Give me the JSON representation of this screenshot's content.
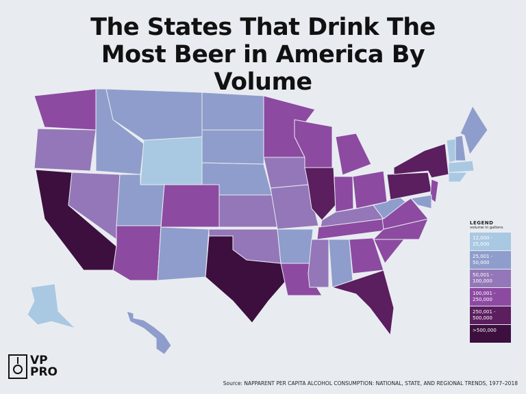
{
  "title": "The States That Drink The Most Beer in America By Volume",
  "legend": {
    "title": "LEGEND",
    "subtitle": "volume in gallons",
    "items": [
      {
        "label": "12,000 - 25,000",
        "color": "#a9c8e2"
      },
      {
        "label": "25,001 - 50,000",
        "color": "#8f9dcc"
      },
      {
        "label": "50,001 - 100,000",
        "color": "#9477b8"
      },
      {
        "label": "100,001 - 250,000",
        "color": "#8d4aa1"
      },
      {
        "label": "250,001 - 500,000",
        "color": "#5b1e5f"
      },
      {
        "label": ">500,000",
        "color": "#3d0f3e"
      }
    ]
  },
  "map": {
    "region_levels": [
      3,
      2,
      5,
      2,
      1,
      1,
      0,
      1,
      3,
      3,
      1,
      1,
      1,
      1,
      2,
      2,
      5,
      3,
      2,
      2,
      1,
      3,
      3,
      4,
      3,
      3,
      3,
      2,
      3,
      2,
      1,
      3,
      4,
      3,
      3,
      3,
      1,
      4,
      4,
      3,
      1,
      0,
      1,
      1,
      0,
      0,
      0,
      1
    ]
  },
  "logo": {
    "line1": "VP",
    "line2": "PRO"
  },
  "source": "Source: NAPPARENT PER CAPITA ALCOHOL CONSUMPTION: NATIONAL, STATE, AND REGIONAL TRENDS, 1977–2018"
}
